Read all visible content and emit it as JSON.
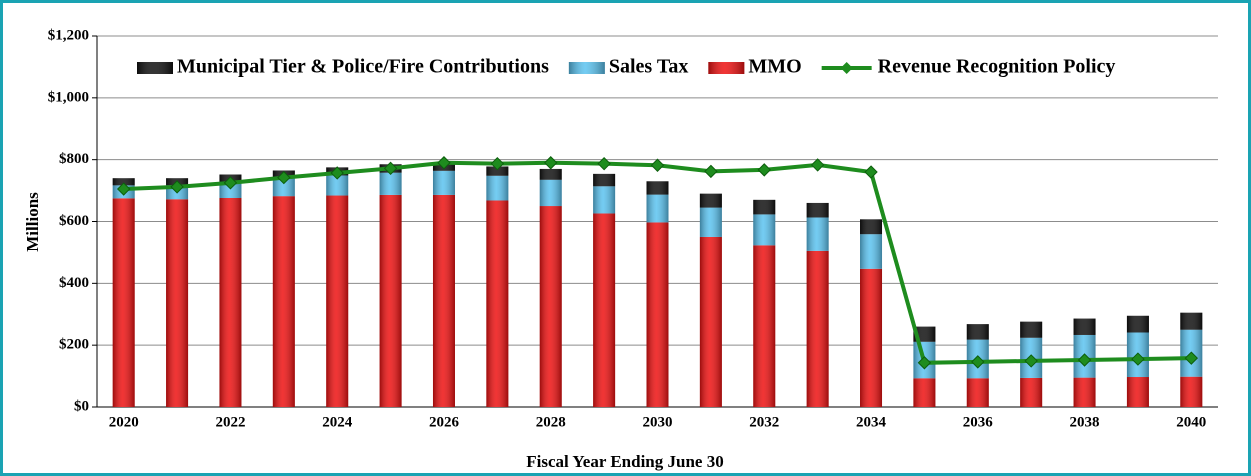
{
  "chart_data": {
    "type": "bar",
    "stacked": true,
    "x_label": "Fiscal Year Ending June 30",
    "y_label": "Millions",
    "categories": [
      "2020",
      null,
      "2022",
      null,
      "2024",
      null,
      "2026",
      null,
      "2028",
      null,
      "2030",
      null,
      "2032",
      null,
      "2034",
      null,
      "2036",
      null,
      "2038",
      null,
      "2040"
    ],
    "series": [
      {
        "name": "Municipal Tier & Police/Fire Contributions",
        "color": "#111111",
        "type": "bar",
        "values": [
          23,
          23,
          24,
          25,
          26,
          27,
          28,
          30,
          35,
          40,
          43,
          45,
          47,
          47,
          48,
          49,
          50,
          52,
          53,
          54,
          55
        ]
      },
      {
        "name": "Sales Tax",
        "color": "#5bc3f0",
        "type": "bar",
        "values": [
          42,
          45,
          52,
          58,
          65,
          72,
          78,
          80,
          85,
          88,
          90,
          95,
          100,
          108,
          112,
          118,
          125,
          130,
          138,
          144,
          152
        ]
      },
      {
        "name": "MMO",
        "color": "#ee1111",
        "type": "bar",
        "values": [
          675,
          672,
          676,
          682,
          684,
          686,
          686,
          668,
          650,
          626,
          597,
          550,
          523,
          505,
          447,
          93,
          93,
          94,
          95,
          97,
          98
        ]
      },
      {
        "name": "Revenue Recognition Policy",
        "color": "#1e8c1e",
        "type": "line",
        "values": [
          705,
          712,
          725,
          742,
          757,
          772,
          790,
          787,
          790,
          787,
          782,
          762,
          767,
          783,
          760,
          143,
          146,
          149,
          152,
          155,
          158
        ]
      }
    ],
    "ylim": [
      0,
      1200
    ],
    "yticks": [
      {
        "value": 0,
        "label": "$0"
      },
      {
        "value": 200,
        "label": "$200"
      },
      {
        "value": 400,
        "label": "$400"
      },
      {
        "value": 600,
        "label": "$600"
      },
      {
        "value": 800,
        "label": "$800"
      },
      {
        "value": 1000,
        "label": "$1,000"
      },
      {
        "value": 1200,
        "label": "$1,200"
      }
    ],
    "grid": true,
    "legend": "top"
  }
}
